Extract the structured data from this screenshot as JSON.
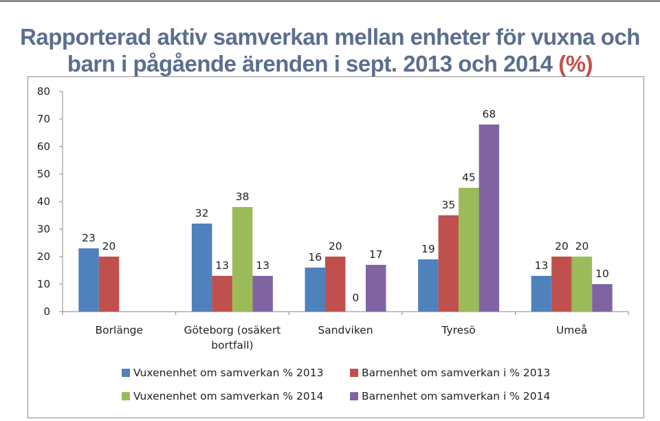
{
  "title": {
    "line1": "Rapporterad aktiv samverkan mellan enheter för vuxna och",
    "line2": "barn i pågående ärenden i sept. 2013 och 2014",
    "suffix": "(%)"
  },
  "chart_data": {
    "type": "bar",
    "title": "Rapporterad aktiv samverkan mellan enheter för vuxna och barn i pågående ärenden i sept. 2013 och 2014 (%)",
    "xlabel": "",
    "ylabel": "",
    "ylim": [
      0,
      80
    ],
    "yticks": [
      0,
      10,
      20,
      30,
      40,
      50,
      60,
      70,
      80
    ],
    "grid": false,
    "legend_position": "bottom",
    "categories": [
      [
        "Borlänge"
      ],
      [
        "Göteborg (osäkert",
        "bortfall)"
      ],
      [
        "Sandviken"
      ],
      [
        "Tyresö"
      ],
      [
        "Umeå"
      ]
    ],
    "series": [
      {
        "name": "Vuxenenhet om samverkan %  2013",
        "color": "#4f81bd",
        "values": [
          23,
          32,
          16,
          19,
          13
        ]
      },
      {
        "name": "Barnenhet om samverkan i %  2013",
        "color": "#c0504d",
        "values": [
          20,
          13,
          20,
          35,
          20
        ]
      },
      {
        "name": "Vuxenenhet om samverkan %  2014",
        "color": "#9bbb59",
        "values": [
          null,
          38,
          0,
          45,
          20
        ]
      },
      {
        "name": "Barnenhet om samverkan i %  2014",
        "color": "#8064a2",
        "values": [
          null,
          13,
          17,
          68,
          10
        ]
      }
    ]
  }
}
